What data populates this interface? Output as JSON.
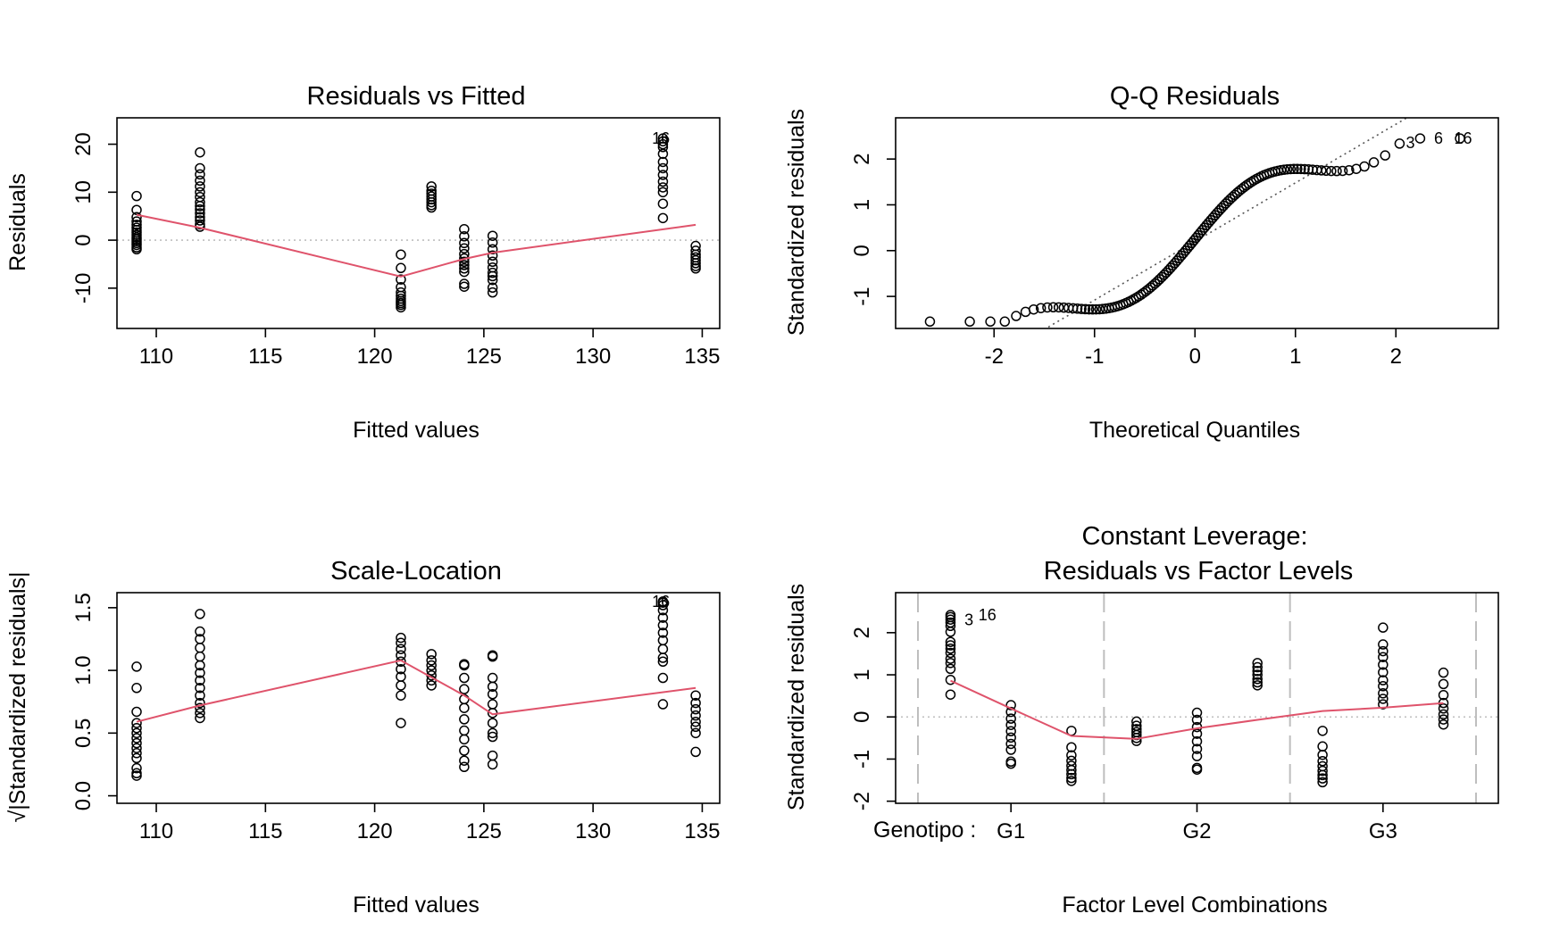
{
  "colors": {
    "points": "#000000",
    "smooth": "#DF536B",
    "reference": "#BEBEBE",
    "frame": "#000000",
    "background": "#FFFFFF"
  },
  "chart_data": [
    {
      "type": "scatter",
      "title": "Residuals vs Fitted",
      "xlabel": "Fitted values",
      "ylabel": "Residuals",
      "xlim": [
        108.2,
        135.8
      ],
      "ylim": [
        -18.4,
        25.5
      ],
      "xticks": [
        110,
        115,
        120,
        125,
        130,
        135
      ],
      "yticks": [
        -10,
        0,
        10,
        20
      ],
      "xtick_labels": [
        "110",
        "115",
        "120",
        "125",
        "130",
        "135"
      ],
      "ytick_labels": [
        "-10",
        "0",
        "10",
        "20"
      ],
      "reference_line": 0,
      "groups": [
        {
          "x": 109.1,
          "y": [
            9.2,
            6.3,
            4.8,
            3.9,
            3.2,
            2.6,
            2.1,
            1.6,
            1.1,
            0.6,
            0.2,
            -0.2,
            -0.6,
            -1.0,
            -1.5,
            -1.9
          ]
        },
        {
          "x": 112.0,
          "y": [
            18.3,
            15.0,
            13.7,
            12.4,
            11.2,
            10.0,
            9.0,
            7.9,
            7.1,
            6.4,
            5.6,
            4.8,
            4.1,
            3.3,
            2.8
          ]
        },
        {
          "x": 121.2,
          "y": [
            -3.0,
            -5.8,
            -8.2,
            -9.8,
            -10.9,
            -11.6,
            -12.2,
            -12.7,
            -13.1,
            -13.5,
            -14.0
          ]
        },
        {
          "x": 122.6,
          "y": [
            11.2,
            10.3,
            9.7,
            9.1,
            8.5,
            7.9,
            7.3,
            6.8
          ]
        },
        {
          "x": 124.1,
          "y": [
            2.3,
            0.8,
            -0.6,
            -1.7,
            -2.9,
            -3.8,
            -4.5,
            -5.2,
            -5.9,
            -6.6,
            -9.1,
            -9.7
          ]
        },
        {
          "x": 125.4,
          "y": [
            0.9,
            -0.5,
            -1.9,
            -3.2,
            -4.5,
            -5.7,
            -6.8,
            -7.5,
            -8.3,
            -9.9,
            -10.9
          ]
        },
        {
          "x": 133.2,
          "y": [
            21.2,
            20.6,
            20.0,
            19.4,
            18.0,
            16.3,
            15.0,
            13.6,
            12.2,
            11.0,
            10.0,
            7.6,
            4.6
          ]
        },
        {
          "x": 134.7,
          "y": [
            -1.2,
            -2.2,
            -3.0,
            -3.6,
            -4.2,
            -4.8,
            -5.4,
            -5.9
          ]
        }
      ],
      "smoother": {
        "x": [
          109.1,
          112.0,
          121.2,
          124.1,
          125.4,
          134.7
        ],
        "y": [
          5.3,
          2.6,
          -7.6,
          -3.9,
          -2.6,
          3.2
        ]
      },
      "point_labels": [
        {
          "text": "16",
          "x": 132.7,
          "y": 21.2
        }
      ]
    },
    {
      "type": "scatter",
      "title": "Q-Q Residuals",
      "xlabel": "Theoretical Quantiles",
      "ylabel": "Standardized residuals",
      "xlim": [
        -2.98,
        3.02
      ],
      "ylim": [
        -1.7,
        2.9
      ],
      "xticks": [
        -2,
        -1,
        0,
        1,
        2
      ],
      "yticks": [
        -1,
        0,
        1,
        2
      ],
      "xtick_labels": [
        "-2",
        "-1",
        "0",
        "1",
        "2"
      ],
      "ytick_labels": [
        "-1",
        "0",
        "1",
        "2"
      ],
      "reference_line": {
        "intercept": 0.2,
        "slope": 1.28
      },
      "point_labels": [
        {
          "text": "3",
          "x": 2.1,
          "y": 2.35
        },
        {
          "text": "6",
          "x": 2.38,
          "y": 2.45
        },
        {
          "text": "16",
          "x": 2.58,
          "y": 2.45
        }
      ]
    },
    {
      "type": "scatter",
      "title": "Scale-Location",
      "xlabel": "Fitted values",
      "ylabel": "√|Standardized residuals|",
      "xlim": [
        108.2,
        135.8
      ],
      "ylim": [
        -0.06,
        1.62
      ],
      "xticks": [
        110,
        115,
        120,
        125,
        130,
        135
      ],
      "yticks": [
        0.0,
        0.5,
        1.0,
        1.5
      ],
      "xtick_labels": [
        "110",
        "115",
        "120",
        "125",
        "130",
        "135"
      ],
      "ytick_labels": [
        "0.0",
        "0.5",
        "1.0",
        "1.5"
      ],
      "groups": [
        {
          "x": 109.1,
          "y": [
            1.03,
            0.86,
            0.67,
            0.58,
            0.54,
            0.5,
            0.46,
            0.42,
            0.38,
            0.34,
            0.3,
            0.22,
            0.18,
            0.16
          ]
        },
        {
          "x": 112.0,
          "y": [
            1.45,
            1.31,
            1.25,
            1.18,
            1.11,
            1.04,
            0.98,
            0.92,
            0.86,
            0.8,
            0.74,
            0.7,
            0.66,
            0.62
          ]
        },
        {
          "x": 121.2,
          "y": [
            1.26,
            1.22,
            1.17,
            1.12,
            1.07,
            1.01,
            0.95,
            0.88,
            0.8,
            0.58
          ]
        },
        {
          "x": 122.6,
          "y": [
            1.13,
            1.08,
            1.04,
            1.0,
            0.96,
            0.92,
            0.88
          ]
        },
        {
          "x": 124.1,
          "y": [
            1.05,
            1.04,
            0.94,
            0.85,
            0.77,
            0.7,
            0.61,
            0.52,
            0.45,
            0.36,
            0.28,
            0.23
          ]
        },
        {
          "x": 125.4,
          "y": [
            1.12,
            1.11,
            0.94,
            0.87,
            0.81,
            0.73,
            0.66,
            0.58,
            0.5,
            0.47,
            0.32,
            0.25
          ]
        },
        {
          "x": 133.2,
          "y": [
            1.55,
            1.54,
            1.52,
            1.48,
            1.42,
            1.36,
            1.3,
            1.24,
            1.17,
            1.1,
            1.07,
            0.94,
            0.73
          ]
        },
        {
          "x": 134.7,
          "y": [
            0.8,
            0.74,
            0.69,
            0.64,
            0.59,
            0.55,
            0.5,
            0.35
          ]
        }
      ],
      "smoother": {
        "x": [
          109.1,
          112.0,
          121.2,
          124.1,
          125.4,
          134.7
        ],
        "y": [
          0.59,
          0.72,
          1.08,
          0.8,
          0.65,
          0.86
        ]
      },
      "point_labels": [
        {
          "text": "16",
          "x": 132.7,
          "y": 1.55
        }
      ]
    },
    {
      "type": "scatter",
      "title": "Constant Leverage:",
      "subtitle": "Residuals vs Factor Levels",
      "xlabel": "Factor Level Combinations",
      "ylabel": "Standardized residuals",
      "factor_label": "Genotipo :",
      "xlim": [
        0.76,
        7.24
      ],
      "ylim": [
        -2.05,
        2.95
      ],
      "xticks": [
        2,
        4,
        6
      ],
      "yticks": [
        -2,
        -1,
        0,
        1,
        2
      ],
      "xtick_labels": [
        "G1",
        "G2",
        "G3"
      ],
      "ytick_labels": [
        "-2",
        "-1",
        "0",
        "1",
        "2"
      ],
      "reference_line": 0,
      "separators": [
        1.0,
        3.0,
        5.0,
        7.0
      ],
      "groups": [
        {
          "x": 1.35,
          "y": [
            2.42,
            2.37,
            2.31,
            2.24,
            2.16,
            2.02,
            1.78,
            1.7,
            1.62,
            1.52,
            1.38,
            1.28,
            1.14,
            0.88,
            0.53
          ]
        },
        {
          "x": 2.0,
          "y": [
            0.28,
            0.12,
            -0.04,
            -0.19,
            -0.34,
            -0.49,
            -0.64,
            -0.78,
            -1.06,
            -1.11
          ]
        },
        {
          "x": 2.65,
          "y": [
            -0.33,
            -0.72,
            -0.91,
            -1.04,
            -1.16,
            -1.26,
            -1.36,
            -1.45,
            -1.52
          ]
        },
        {
          "x": 3.35,
          "y": [
            -0.11,
            -0.21,
            -0.29,
            -0.36,
            -0.43,
            -0.5,
            -0.57
          ]
        },
        {
          "x": 4.0,
          "y": [
            0.1,
            -0.07,
            -0.24,
            -0.4,
            -0.58,
            -0.76,
            -0.93,
            -1.21,
            -1.25
          ]
        },
        {
          "x": 4.65,
          "y": [
            1.28,
            1.18,
            1.09,
            1.0,
            0.9,
            0.82,
            0.75
          ]
        },
        {
          "x": 5.35,
          "y": [
            -0.33,
            -0.7,
            -0.9,
            -1.05,
            -1.17,
            -1.28,
            -1.38,
            -1.46,
            -1.55
          ]
        },
        {
          "x": 6.0,
          "y": [
            2.12,
            1.72,
            1.56,
            1.42,
            1.24,
            1.06,
            0.87,
            0.73,
            0.56,
            0.43,
            0.3
          ]
        },
        {
          "x": 6.65,
          "y": [
            1.05,
            0.78,
            0.52,
            0.33,
            0.2,
            0.06,
            -0.06,
            -0.18
          ]
        }
      ],
      "smoother": {
        "x": [
          1.35,
          2.0,
          2.65,
          3.35,
          4.0,
          4.65,
          5.35,
          6.0,
          6.65
        ],
        "y": [
          0.86,
          0.2,
          -0.45,
          -0.52,
          -0.27,
          -0.07,
          0.14,
          0.22,
          0.33
        ]
      },
      "point_labels": [
        {
          "text": "3",
          "x": 1.5,
          "y": 2.3
        },
        {
          "text": "16",
          "x": 1.65,
          "y": 2.42
        }
      ]
    }
  ]
}
